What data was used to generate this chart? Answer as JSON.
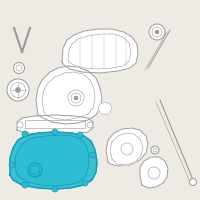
{
  "bg_color": "#eeebe4",
  "line_color": "#999999",
  "highlight_color": "#29bcd4",
  "highlight_edge": "#1a9ab0",
  "figsize": [
    2.0,
    2.0
  ],
  "dpi": 100
}
